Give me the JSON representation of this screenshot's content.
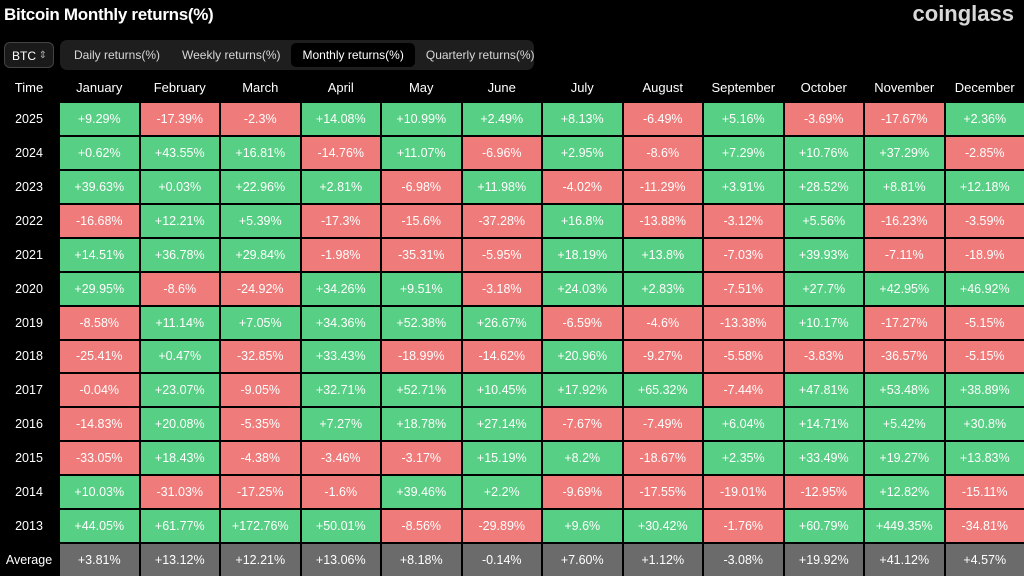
{
  "header": {
    "title": "Bitcoin Monthly returns(%)",
    "brand": "coinglass"
  },
  "controls": {
    "asset": "BTC",
    "tabs": [
      "Daily returns(%)",
      "Weekly returns(%)",
      "Monthly returns(%)",
      "Quarterly returns(%)"
    ]
  },
  "table": {
    "columns": [
      "Time",
      "January",
      "February",
      "March",
      "April",
      "May",
      "June",
      "July",
      "August",
      "September",
      "October",
      "November",
      "December"
    ],
    "rows": [
      [
        "2025",
        "+9.29%",
        "-17.39%",
        "-2.3%",
        "+14.08%",
        "+10.99%",
        "+2.49%",
        "+8.13%",
        "-6.49%",
        "+5.16%",
        "-3.69%",
        "-17.67%",
        "+2.36%"
      ],
      [
        "2024",
        "+0.62%",
        "+43.55%",
        "+16.81%",
        "-14.76%",
        "+11.07%",
        "-6.96%",
        "+2.95%",
        "-8.6%",
        "+7.29%",
        "+10.76%",
        "+37.29%",
        "-2.85%"
      ],
      [
        "2023",
        "+39.63%",
        "+0.03%",
        "+22.96%",
        "+2.81%",
        "-6.98%",
        "+11.98%",
        "-4.02%",
        "-11.29%",
        "+3.91%",
        "+28.52%",
        "+8.81%",
        "+12.18%"
      ],
      [
        "2022",
        "-16.68%",
        "+12.21%",
        "+5.39%",
        "-17.3%",
        "-15.6%",
        "-37.28%",
        "+16.8%",
        "-13.88%",
        "-3.12%",
        "+5.56%",
        "-16.23%",
        "-3.59%"
      ],
      [
        "2021",
        "+14.51%",
        "+36.78%",
        "+29.84%",
        "-1.98%",
        "-35.31%",
        "-5.95%",
        "+18.19%",
        "+13.8%",
        "-7.03%",
        "+39.93%",
        "-7.11%",
        "-18.9%"
      ],
      [
        "2020",
        "+29.95%",
        "-8.6%",
        "-24.92%",
        "+34.26%",
        "+9.51%",
        "-3.18%",
        "+24.03%",
        "+2.83%",
        "-7.51%",
        "+27.7%",
        "+42.95%",
        "+46.92%"
      ],
      [
        "2019",
        "-8.58%",
        "+11.14%",
        "+7.05%",
        "+34.36%",
        "+52.38%",
        "+26.67%",
        "-6.59%",
        "-4.6%",
        "-13.38%",
        "+10.17%",
        "-17.27%",
        "-5.15%"
      ],
      [
        "2018",
        "-25.41%",
        "+0.47%",
        "-32.85%",
        "+33.43%",
        "-18.99%",
        "-14.62%",
        "+20.96%",
        "-9.27%",
        "-5.58%",
        "-3.83%",
        "-36.57%",
        "-5.15%"
      ],
      [
        "2017",
        "-0.04%",
        "+23.07%",
        "-9.05%",
        "+32.71%",
        "+52.71%",
        "+10.45%",
        "+17.92%",
        "+65.32%",
        "-7.44%",
        "+47.81%",
        "+53.48%",
        "+38.89%"
      ],
      [
        "2016",
        "-14.83%",
        "+20.08%",
        "-5.35%",
        "+7.27%",
        "+18.78%",
        "+27.14%",
        "-7.67%",
        "-7.49%",
        "+6.04%",
        "+14.71%",
        "+5.42%",
        "+30.8%"
      ],
      [
        "2015",
        "-33.05%",
        "+18.43%",
        "-4.38%",
        "-3.46%",
        "-3.17%",
        "+15.19%",
        "+8.2%",
        "-18.67%",
        "+2.35%",
        "+33.49%",
        "+19.27%",
        "+13.83%"
      ],
      [
        "2014",
        "+10.03%",
        "-31.03%",
        "-17.25%",
        "-1.6%",
        "+39.46%",
        "+2.2%",
        "-9.69%",
        "-17.55%",
        "-19.01%",
        "-12.95%",
        "+12.82%",
        "-15.11%"
      ],
      [
        "2013",
        "+44.05%",
        "+61.77%",
        "+172.76%",
        "+50.01%",
        "-8.56%",
        "-29.89%",
        "+9.6%",
        "+30.42%",
        "-1.76%",
        "+60.79%",
        "+449.35%",
        "-34.81%"
      ]
    ],
    "average": [
      "Average",
      "+3.81%",
      "+13.12%",
      "+12.21%",
      "+13.06%",
      "+8.18%",
      "-0.14%",
      "+7.60%",
      "+1.12%",
      "-3.08%",
      "+19.92%",
      "+41.12%",
      "+4.57%"
    ]
  }
}
